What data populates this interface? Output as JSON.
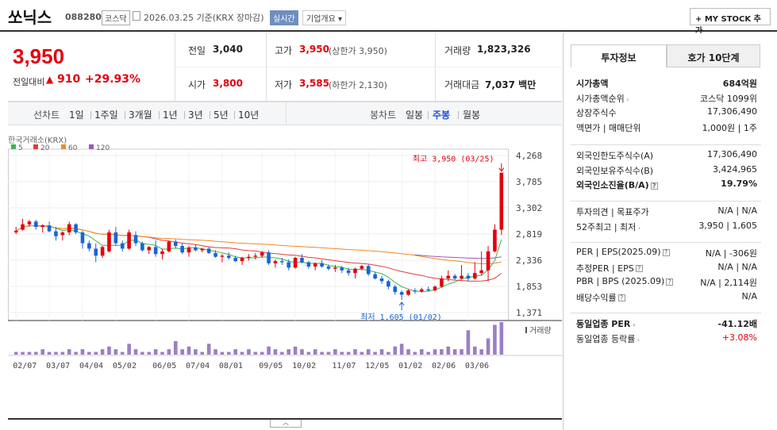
{
  "header": {
    "name": "쏘닉스",
    "code": "088280",
    "market": "코스닥",
    "date": "2026.03.25 기준(KRX 장마감)",
    "realtime": "실시간",
    "company_overview": "기업개요",
    "add_mystock": "+ MY STOCK 추가"
  },
  "price": {
    "current": "3,950",
    "change_label": "전일대비",
    "change_value": "910",
    "change_rate": "+29.93%",
    "prev_close_label": "전일",
    "prev_close": "3,040",
    "open_label": "시가",
    "open": "3,800",
    "high_label": "고가",
    "high": "3,950",
    "upper_limit": "(상한가 3,950)",
    "low_label": "저가",
    "low": "3,585",
    "lower_limit": "(하한가 2,130)",
    "volume_label": "거래량",
    "volume": "1,823,326",
    "amount_label": "거래대금",
    "amount": "7,037",
    "amount_unit": "백만"
  },
  "period_bar": {
    "line_label": "선차트",
    "line_options": [
      "1일",
      "1주일",
      "3개월",
      "1년",
      "3년",
      "5년",
      "10년"
    ],
    "candle_label": "봉차트",
    "candle_options": [
      "일봉",
      "주봉",
      "월봉"
    ],
    "candle_selected": "주봉"
  },
  "chart_data": {
    "type": "candlestick",
    "source": "한국거래소(KRX)",
    "legend": [
      {
        "name": "5",
        "color": "#3cb44b"
      },
      {
        "name": "20",
        "color": "#e03c3c"
      },
      {
        "name": "60",
        "color": "#f08a24"
      },
      {
        "name": "120",
        "color": "#9b59b6"
      }
    ],
    "y_ticks": [
      "4,268",
      "3,785",
      "3,302",
      "2,819",
      "2,336",
      "1,853",
      "1,371"
    ],
    "ylim": [
      1371,
      4268
    ],
    "x_ticks": [
      "02/07",
      "03/07",
      "04/04",
      "05/02",
      "06/05",
      "07/04",
      "08/01",
      "09/05",
      "10/02",
      "11/07",
      "12/05",
      "01/02",
      "02/06",
      "03/06"
    ],
    "max_annotation": "최고 3,950 (03/25)",
    "min_annotation": "최저 1,605 (01/02)",
    "volume_label": "거래량",
    "candles": [
      [
        2850,
        2950,
        2820,
        2880
      ],
      [
        2900,
        3100,
        2880,
        3000
      ],
      [
        3000,
        3080,
        2950,
        3050
      ],
      [
        3050,
        3080,
        2900,
        2950
      ],
      [
        2950,
        3000,
        2850,
        2980
      ],
      [
        2980,
        3050,
        2850,
        2870
      ],
      [
        2870,
        2950,
        2700,
        2780
      ],
      [
        2800,
        2870,
        2700,
        2850
      ],
      [
        2850,
        3050,
        2800,
        3000
      ],
      [
        3000,
        3020,
        2820,
        2850
      ],
      [
        2850,
        2880,
        2550,
        2650
      ],
      [
        2650,
        2700,
        2500,
        2550
      ],
      [
        2550,
        2650,
        2300,
        2420
      ],
      [
        2420,
        2600,
        2380,
        2580
      ],
      [
        2500,
        2900,
        2480,
        2850
      ],
      [
        2850,
        2950,
        2600,
        2650
      ],
      [
        2650,
        2700,
        2500,
        2550
      ],
      [
        2550,
        2900,
        2530,
        2850
      ],
      [
        2800,
        2870,
        2600,
        2650
      ],
      [
        2650,
        2680,
        2500,
        2520
      ],
      [
        2520,
        2600,
        2450,
        2580
      ],
      [
        2580,
        2700,
        2400,
        2450
      ],
      [
        2450,
        2550,
        2350,
        2500
      ],
      [
        2500,
        2700,
        2480,
        2680
      ],
      [
        2680,
        2720,
        2550,
        2600
      ],
      [
        2600,
        2650,
        2450,
        2480
      ],
      [
        2480,
        2600,
        2400,
        2570
      ],
      [
        2570,
        2620,
        2500,
        2520
      ],
      [
        2520,
        2560,
        2480,
        2550
      ],
      [
        2550,
        2580,
        2450,
        2470
      ],
      [
        2470,
        2520,
        2380,
        2400
      ],
      [
        2400,
        2450,
        2300,
        2420
      ],
      [
        2420,
        2480,
        2350,
        2380
      ],
      [
        2380,
        2420,
        2300,
        2320
      ],
      [
        2320,
        2400,
        2250,
        2380
      ],
      [
        2380,
        2450,
        2330,
        2400
      ],
      [
        2400,
        2470,
        2350,
        2420
      ],
      [
        2420,
        2500,
        2380,
        2480
      ],
      [
        2480,
        2520,
        2250,
        2280
      ],
      [
        2280,
        2350,
        2200,
        2320
      ],
      [
        2320,
        2380,
        2250,
        2300
      ],
      [
        2300,
        2350,
        2150,
        2200
      ],
      [
        2200,
        2400,
        2180,
        2380
      ],
      [
        2380,
        2450,
        2280,
        2300
      ],
      [
        2300,
        2320,
        2180,
        2220
      ],
      [
        2220,
        2300,
        2150,
        2280
      ],
      [
        2280,
        2340,
        2200,
        2220
      ],
      [
        2220,
        2260,
        2150,
        2180
      ],
      [
        2180,
        2250,
        2120,
        2200
      ],
      [
        2200,
        2230,
        2100,
        2150
      ],
      [
        2150,
        2200,
        2050,
        2100
      ],
      [
        2100,
        2200,
        2000,
        2180
      ],
      [
        2180,
        2250,
        2150,
        2230
      ],
      [
        2230,
        2260,
        2050,
        2080
      ],
      [
        2080,
        2120,
        1980,
        2000
      ],
      [
        2000,
        2050,
        1900,
        1950
      ],
      [
        1950,
        1980,
        1800,
        1850
      ],
      [
        1850,
        1880,
        1700,
        1750
      ],
      [
        1750,
        1780,
        1605,
        1700
      ],
      [
        1700,
        1800,
        1680,
        1780
      ],
      [
        1780,
        1820,
        1720,
        1760
      ],
      [
        1760,
        1830,
        1740,
        1800
      ],
      [
        1800,
        1850,
        1760,
        1780
      ],
      [
        1780,
        1870,
        1760,
        1850
      ],
      [
        1850,
        2050,
        1830,
        2000
      ],
      [
        2000,
        2150,
        1950,
        2050
      ],
      [
        2050,
        2080,
        1970,
        2000
      ],
      [
        2000,
        2250,
        1980,
        2050
      ],
      [
        2050,
        2100,
        1950,
        2000
      ],
      [
        2000,
        2300,
        1980,
        2100
      ],
      [
        2100,
        2500,
        2050,
        2150
      ],
      [
        2150,
        2600,
        1950,
        2500
      ],
      [
        2500,
        3000,
        2480,
        2900
      ],
      [
        2900,
        3950,
        2800,
        3950
      ]
    ],
    "volumes": [
      1,
      1,
      1,
      1,
      2,
      1,
      1,
      1,
      2,
      1,
      2,
      1,
      1,
      2,
      3,
      2,
      1,
      4,
      2,
      1,
      1,
      2,
      1,
      2,
      5,
      2,
      3,
      2,
      1,
      4,
      2,
      1,
      1,
      2,
      1,
      2,
      1,
      1,
      3,
      2,
      1,
      2,
      3,
      2,
      1,
      2,
      1,
      1,
      2,
      1,
      1,
      2,
      1,
      2,
      1,
      2,
      1,
      3,
      4,
      2,
      1,
      2,
      1,
      2,
      2,
      3,
      2,
      2,
      9,
      3,
      2,
      6,
      11,
      12
    ]
  },
  "right_panel": {
    "tab_invest": "투자정보",
    "tab_orderbook": "호가 10단계",
    "rows1": [
      {
        "label": "시가총액",
        "value": "684억원",
        "bold": true
      },
      {
        "label": "시가총액순위",
        "value": "코스닥 1099위"
      },
      {
        "label": "상장주식수",
        "value": "17,306,490"
      },
      {
        "label": "액면가 | 매매단위",
        "value": "1,000원 | 1주"
      }
    ],
    "rows2": [
      {
        "label": "외국인한도주식수(A)",
        "value": "17,306,490"
      },
      {
        "label": "외국인보유주식수(B)",
        "value": "3,424,965"
      },
      {
        "label": "외국인소진율(B/A)",
        "value": "19.79%",
        "bold": true
      }
    ],
    "rows3": [
      {
        "label": "투자의견 | 목표주가",
        "value": "N/A | N/A"
      },
      {
        "label": "52주최고 | 최저",
        "value": "3,950 | 1,605"
      }
    ],
    "rows4": [
      {
        "label": "PER | EPS(2025.09)",
        "value": "N/A | -306원"
      },
      {
        "label": "추정PER | EPS",
        "value": "N/A | N/A"
      },
      {
        "label": "PBR | BPS (2025.09)",
        "value": "N/A | 2,114원"
      },
      {
        "label": "배당수익률",
        "value": "N/A"
      }
    ],
    "rows5": [
      {
        "label": "동일업종 PER",
        "value": "-41.12배",
        "bold": true
      },
      {
        "label": "동일업종 등락률",
        "value": "+3.08%",
        "red": true
      }
    ]
  }
}
